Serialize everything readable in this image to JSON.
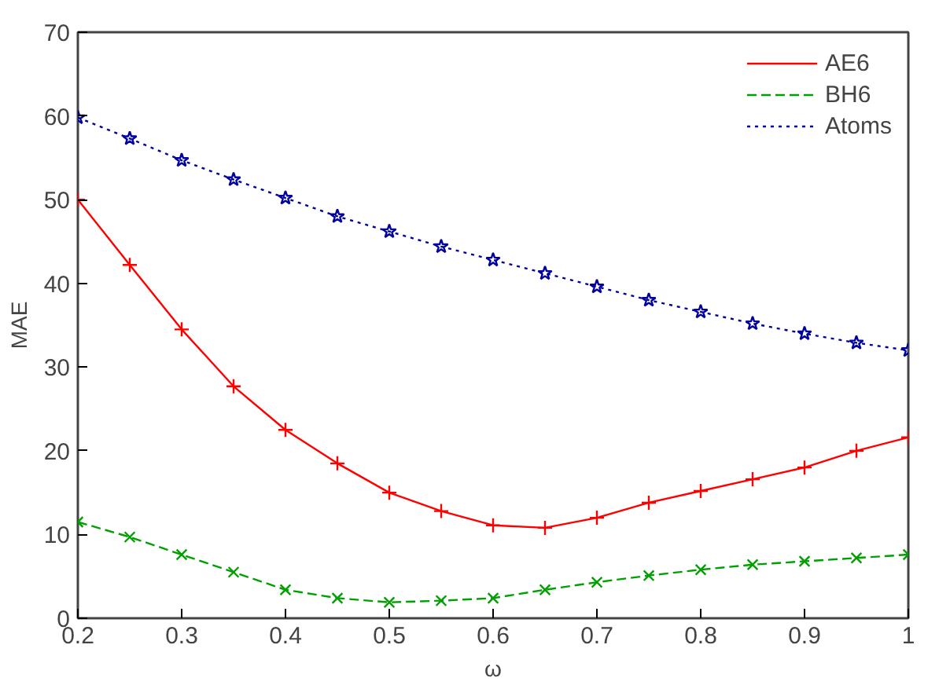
{
  "chart_data": {
    "type": "line",
    "xlabel": "ω",
    "ylabel": "MAE",
    "x": [
      0.2,
      0.25,
      0.3,
      0.35,
      0.4,
      0.45,
      0.5,
      0.55,
      0.6,
      0.65,
      0.7,
      0.75,
      0.8,
      0.85,
      0.9,
      0.95,
      1.0
    ],
    "series": [
      {
        "name": "AE6",
        "color": "#ff0000",
        "line_style": "solid",
        "marker": "cross",
        "values": [
          50,
          42.2,
          34.5,
          27.7,
          22.5,
          18.5,
          15,
          12.8,
          11.1,
          10.8,
          12,
          13.8,
          15.2,
          16.6,
          18,
          20,
          21.6
        ]
      },
      {
        "name": "BH6",
        "color": "#00a000",
        "line_style": "dashed",
        "marker": "x",
        "values": [
          11.5,
          9.7,
          7.6,
          5.5,
          3.4,
          2.4,
          1.9,
          2.1,
          2.4,
          3.4,
          4.3,
          5.1,
          5.8,
          6.4,
          6.8,
          7.2,
          7.6
        ]
      },
      {
        "name": "Atoms",
        "color": "#0000a0",
        "line_style": "dotted",
        "marker": "star",
        "values": [
          59.8,
          57.3,
          54.7,
          52.4,
          50.2,
          48,
          46.2,
          44.4,
          42.8,
          41.2,
          39.6,
          38,
          36.6,
          35.2,
          34,
          32.9,
          32
        ]
      }
    ],
    "xlim": [
      0.2,
      1
    ],
    "xticks": [
      0.2,
      0.3,
      0.4,
      0.5,
      0.6,
      0.7,
      0.8,
      0.9,
      1
    ],
    "ylim": [
      0,
      70
    ],
    "yticks": [
      0,
      10,
      20,
      30,
      40,
      50,
      60,
      70
    ],
    "grid": false,
    "legend": "top right"
  }
}
